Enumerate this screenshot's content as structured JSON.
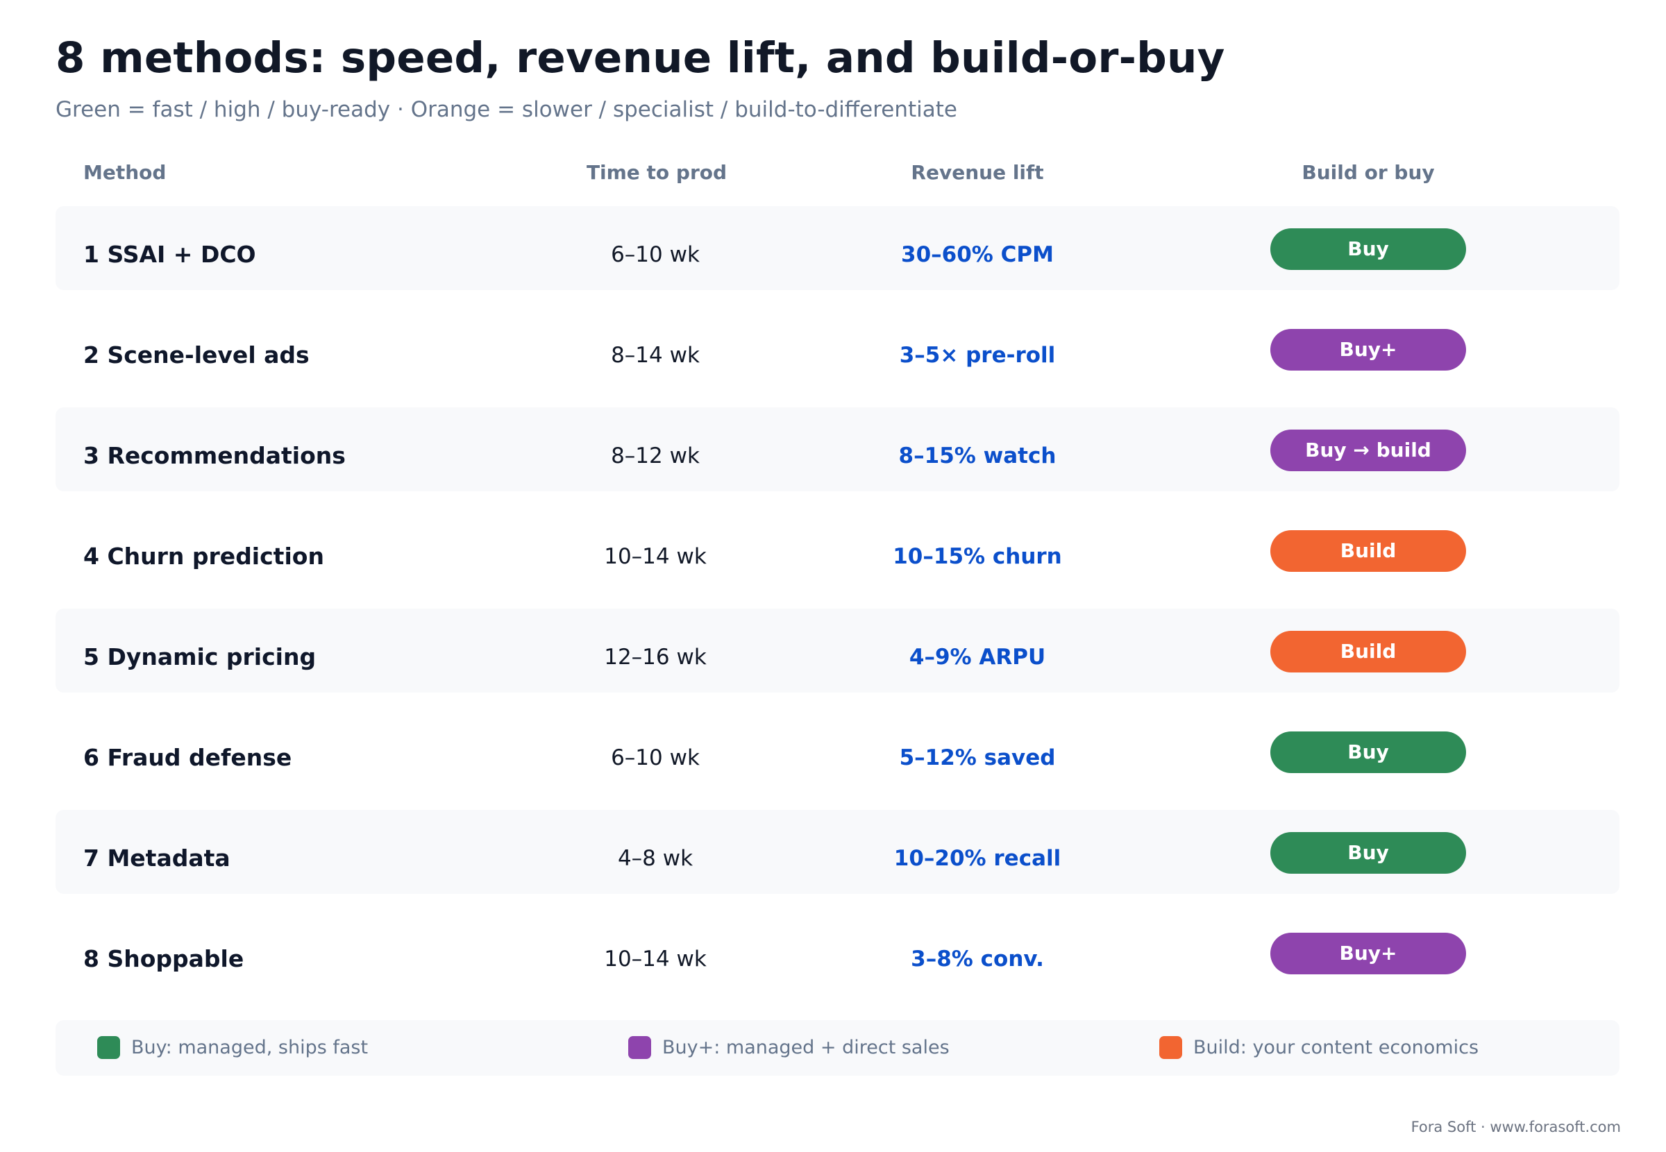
{
  "title": "8 methods: speed, revenue lift, and build-or-buy",
  "subtitle": "Green = fast / high / buy-ready · Orange = slower / specialist / build-to-differentiate",
  "columns": {
    "method": "Method",
    "time": "Time to prod",
    "lift": "Revenue lift",
    "build": "Build or buy"
  },
  "colors": {
    "buy": "#2e8b57",
    "buy_plus": "#8e44ad",
    "build": "#f26531",
    "lift_text": "#0b4fcb",
    "row_shade": "#f8f9fb"
  },
  "rows": [
    {
      "method": "1 SSAI + DCO",
      "time": "6–10 wk",
      "lift": "30–60% CPM",
      "decision": "Buy",
      "category": "buy"
    },
    {
      "method": "2 Scene-level ads",
      "time": "8–14 wk",
      "lift": "3–5× pre-roll",
      "decision": "Buy+",
      "category": "buy_plus"
    },
    {
      "method": "3 Recommendations",
      "time": "8–12 wk",
      "lift": "8–15% watch",
      "decision": "Buy → build",
      "category": "buy_plus"
    },
    {
      "method": "4 Churn prediction",
      "time": "10–14 wk",
      "lift": "10–15% churn",
      "decision": "Build",
      "category": "build"
    },
    {
      "method": "5 Dynamic pricing",
      "time": "12–16 wk",
      "lift": "4–9% ARPU",
      "decision": "Build",
      "category": "build"
    },
    {
      "method": "6 Fraud defense",
      "time": "6–10 wk",
      "lift": "5–12% saved",
      "decision": "Buy",
      "category": "buy"
    },
    {
      "method": "7 Metadata",
      "time": "4–8 wk",
      "lift": "10–20% recall",
      "decision": "Buy",
      "category": "buy"
    },
    {
      "method": "8 Shoppable",
      "time": "10–14 wk",
      "lift": "3–8% conv.",
      "decision": "Buy+",
      "category": "buy_plus"
    }
  ],
  "legend": [
    {
      "label": "Buy: managed, ships fast",
      "category": "buy"
    },
    {
      "label": "Buy+: managed + direct sales",
      "category": "buy_plus"
    },
    {
      "label": "Build: your content economics",
      "category": "build"
    }
  ],
  "footer": "Fora Soft · www.forasoft.com"
}
